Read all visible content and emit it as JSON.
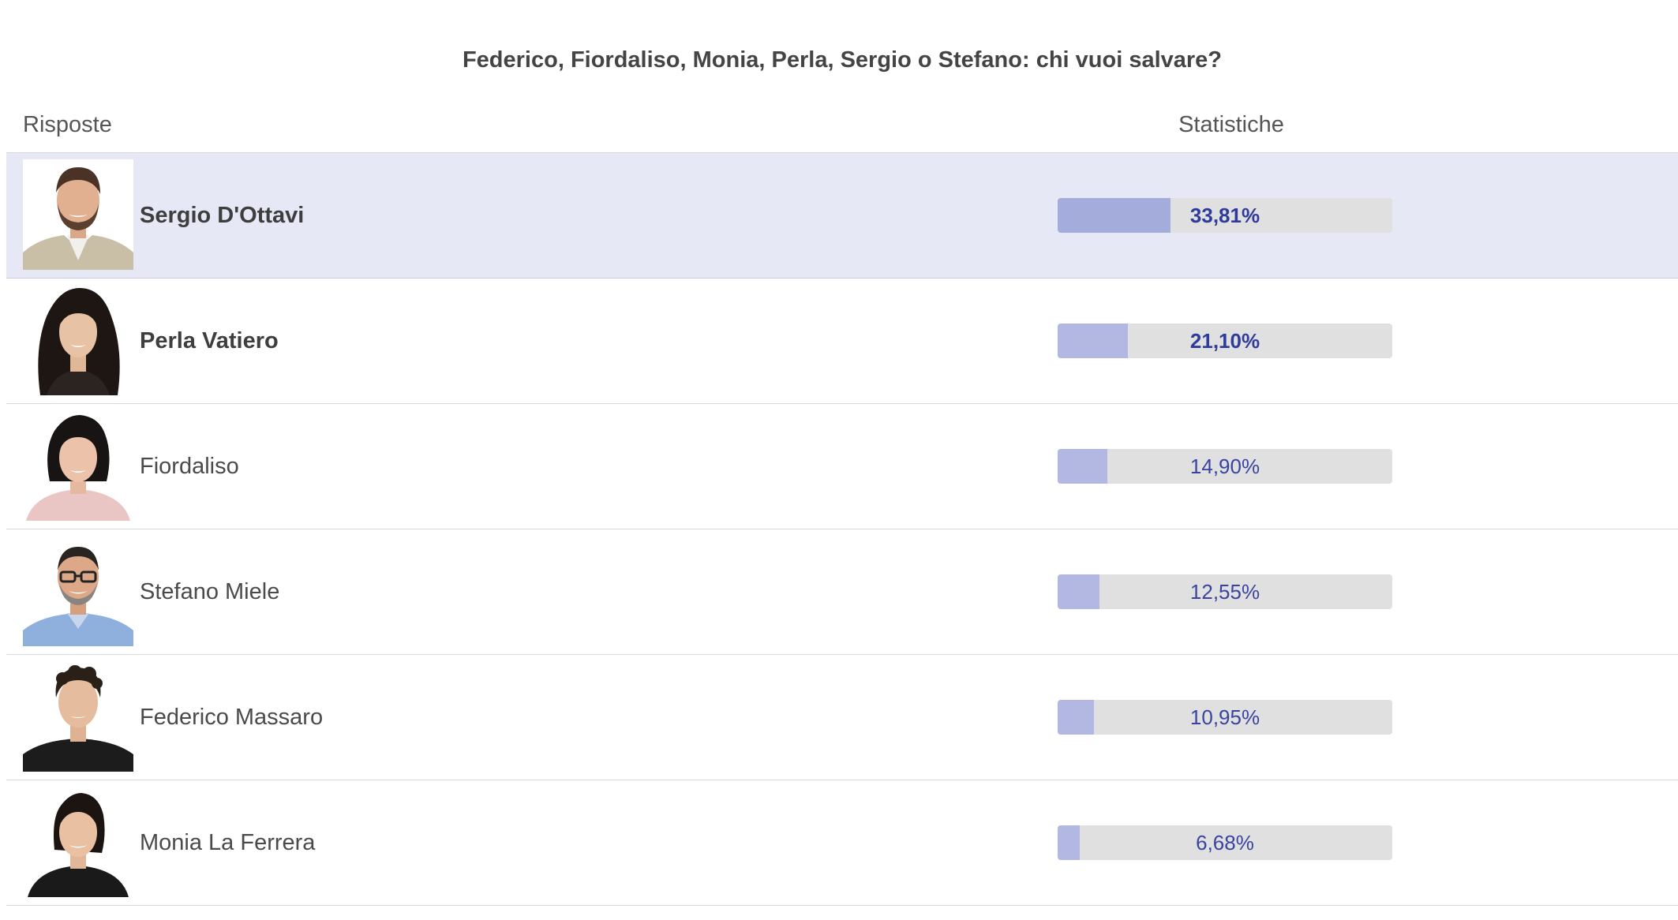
{
  "poll": {
    "question": "Federico, Fiordaliso, Monia, Perla, Sergio o Stefano: chi vuoi salvare?",
    "headers": {
      "answers": "Risposte",
      "stats": "Statistiche"
    },
    "colors": {
      "highlight_bg": "#e6e8f6",
      "bar_track": "#e0e0e0",
      "bar_fill_leader": "#a4acdc",
      "bar_fill": "#b2b8e2",
      "label_text": "#3a44a0"
    },
    "results": [
      {
        "name": "Sergio D'Ottavi",
        "label": "33,81%",
        "value": 33.81,
        "avatar": "man-beard-avatar",
        "highlight": true,
        "bold": true
      },
      {
        "name": "Perla Vatiero",
        "label": "21,10%",
        "value": 21.1,
        "avatar": "woman-long-hair-avatar",
        "highlight": false,
        "bold": true
      },
      {
        "name": "Fiordaliso",
        "label": "14,90%",
        "value": 14.9,
        "avatar": "woman-bob-avatar",
        "highlight": false,
        "bold": false
      },
      {
        "name": "Stefano Miele",
        "label": "12,55%",
        "value": 12.55,
        "avatar": "man-glasses-avatar",
        "highlight": false,
        "bold": false
      },
      {
        "name": "Federico Massaro",
        "label": "10,95%",
        "value": 10.95,
        "avatar": "man-curly-hair-avatar",
        "highlight": false,
        "bold": false
      },
      {
        "name": "Monia La Ferrera",
        "label": "6,68%",
        "value": 6.68,
        "avatar": "woman-ponytail-avatar",
        "highlight": false,
        "bold": false
      }
    ]
  }
}
